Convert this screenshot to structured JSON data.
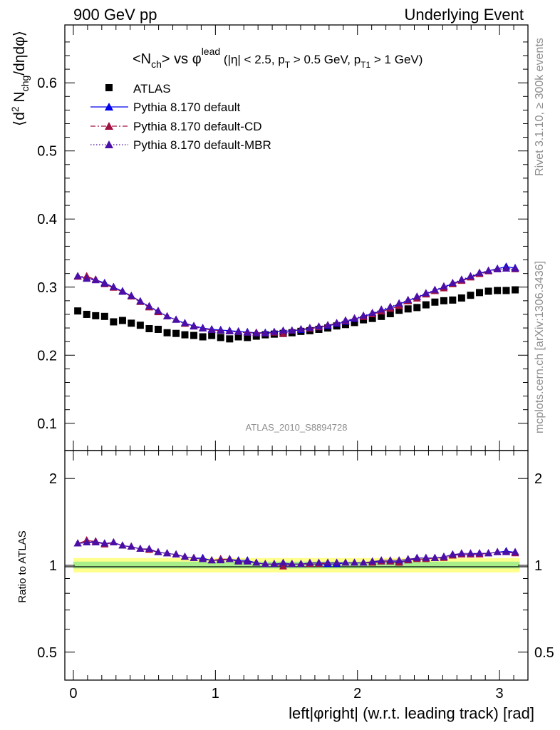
{
  "header": {
    "left": "900 GeV pp",
    "right": "Underlying Event"
  },
  "side": {
    "rivet": "Rivet 3.1.10, ≥ 300k events",
    "source": "mcplots.cern.ch [arXiv:1306.3436]"
  },
  "chart_data": [
    {
      "type": "scatter",
      "title": "<N_ch> vs φ^lead (|η| < 2.5, p_T > 0.5 GeV, p_T1 > 1 GeV)",
      "ylabel": "⟨d² N_chg/dηdφ⟩",
      "xlabel": "",
      "analysis_tag": "ATLAS_2010_S8894728",
      "xlim": [
        -0.06,
        3.2
      ],
      "ylim": [
        0.06,
        0.685
      ],
      "yticks": [
        "0.1",
        "0.2",
        "0.3",
        "0.4",
        "0.5",
        "0.6"
      ],
      "legend_position": "top-left",
      "x": [
        0.031,
        0.094,
        0.157,
        0.22,
        0.283,
        0.346,
        0.408,
        0.471,
        0.534,
        0.597,
        0.66,
        0.723,
        0.785,
        0.848,
        0.911,
        0.974,
        1.037,
        1.1,
        1.162,
        1.225,
        1.288,
        1.351,
        1.414,
        1.477,
        1.539,
        1.602,
        1.665,
        1.728,
        1.791,
        1.854,
        1.916,
        1.979,
        2.042,
        2.105,
        2.168,
        2.231,
        2.293,
        2.356,
        2.419,
        2.482,
        2.545,
        2.608,
        2.67,
        2.733,
        2.796,
        2.859,
        2.922,
        2.985,
        3.047,
        3.11
      ],
      "series": [
        {
          "name": "ATLAS",
          "color": "#000000",
          "marker": "square",
          "values": [
            0.265,
            0.26,
            0.258,
            0.257,
            0.249,
            0.251,
            0.247,
            0.244,
            0.239,
            0.238,
            0.233,
            0.232,
            0.23,
            0.229,
            0.227,
            0.229,
            0.226,
            0.224,
            0.227,
            0.226,
            0.228,
            0.23,
            0.231,
            0.232,
            0.233,
            0.235,
            0.236,
            0.238,
            0.24,
            0.243,
            0.245,
            0.248,
            0.252,
            0.254,
            0.257,
            0.261,
            0.266,
            0.268,
            0.27,
            0.274,
            0.278,
            0.28,
            0.281,
            0.284,
            0.288,
            0.292,
            0.294,
            0.295,
            0.295,
            0.296
          ]
        },
        {
          "name": "Pythia 8.170 default",
          "color": "#0000ee",
          "marker": "triangle",
          "line": "solid",
          "values": [
            0.316,
            0.313,
            0.311,
            0.306,
            0.3,
            0.294,
            0.287,
            0.279,
            0.271,
            0.264,
            0.257,
            0.252,
            0.247,
            0.243,
            0.24,
            0.238,
            0.237,
            0.236,
            0.235,
            0.234,
            0.233,
            0.233,
            0.234,
            0.235,
            0.236,
            0.237,
            0.239,
            0.241,
            0.243,
            0.246,
            0.249,
            0.253,
            0.257,
            0.261,
            0.265,
            0.27,
            0.275,
            0.28,
            0.285,
            0.29,
            0.295,
            0.3,
            0.305,
            0.31,
            0.315,
            0.32,
            0.324,
            0.327,
            0.33,
            0.328
          ]
        },
        {
          "name": "Pythia 8.170 default-CD",
          "color": "#a01040",
          "marker": "triangle",
          "line": "dashdot",
          "values": [
            0.315,
            0.316,
            0.311,
            0.304,
            0.299,
            0.293,
            0.286,
            0.278,
            0.27,
            0.263,
            0.257,
            0.252,
            0.246,
            0.242,
            0.239,
            0.237,
            0.236,
            0.235,
            0.234,
            0.233,
            0.233,
            0.232,
            0.233,
            0.231,
            0.236,
            0.238,
            0.239,
            0.241,
            0.244,
            0.247,
            0.25,
            0.254,
            0.256,
            0.26,
            0.264,
            0.268,
            0.272,
            0.279,
            0.283,
            0.289,
            0.294,
            0.298,
            0.304,
            0.309,
            0.314,
            0.319,
            0.323,
            0.326,
            0.327,
            0.326
          ]
        },
        {
          "name": "Pythia 8.170 default-MBR",
          "color": "#4b0fa8",
          "marker": "triangle",
          "line": "dotted",
          "values": [
            0.316,
            0.312,
            0.31,
            0.305,
            0.3,
            0.293,
            0.287,
            0.279,
            0.272,
            0.265,
            0.257,
            0.252,
            0.247,
            0.242,
            0.239,
            0.237,
            0.236,
            0.235,
            0.234,
            0.233,
            0.232,
            0.232,
            0.234,
            0.236,
            0.236,
            0.238,
            0.24,
            0.242,
            0.244,
            0.247,
            0.251,
            0.254,
            0.258,
            0.262,
            0.267,
            0.271,
            0.276,
            0.281,
            0.286,
            0.291,
            0.296,
            0.301,
            0.306,
            0.311,
            0.316,
            0.321,
            0.324,
            0.326,
            0.327,
            0.327
          ]
        }
      ]
    },
    {
      "type": "scatter",
      "title": "",
      "ylabel": "Ratio to ATLAS",
      "xlabel": "left|φright| (w.r.t. leading track) [rad]",
      "xlim": [
        -0.06,
        3.2
      ],
      "ylim": [
        0.4,
        2.5
      ],
      "log_y": true,
      "yticks": [
        "0.5",
        "1",
        "2"
      ],
      "xticks": [
        "0",
        "1",
        "2",
        "3"
      ],
      "bands": [
        {
          "color": "#ffff8c",
          "lo": 0.945,
          "hi": 1.06
        },
        {
          "color": "#a8ef8c",
          "lo": 0.975,
          "hi": 1.03
        }
      ],
      "series": [
        {
          "name": "Pythia 8.170 default",
          "color": "#0000ee",
          "marker": "triangle",
          "values": [
            1.19,
            1.2,
            1.21,
            1.19,
            1.2,
            1.17,
            1.16,
            1.14,
            1.13,
            1.11,
            1.1,
            1.09,
            1.07,
            1.06,
            1.06,
            1.04,
            1.05,
            1.05,
            1.04,
            1.04,
            1.02,
            1.01,
            1.01,
            1.01,
            1.01,
            1.01,
            1.01,
            1.01,
            1.01,
            1.01,
            1.02,
            1.02,
            1.02,
            1.03,
            1.03,
            1.03,
            1.03,
            1.04,
            1.06,
            1.06,
            1.06,
            1.07,
            1.09,
            1.09,
            1.09,
            1.1,
            1.1,
            1.11,
            1.12,
            1.11
          ]
        },
        {
          "name": "Pythia 8.170 default-CD",
          "color": "#a01040",
          "marker": "triangle",
          "values": [
            1.19,
            1.22,
            1.21,
            1.18,
            1.2,
            1.17,
            1.16,
            1.14,
            1.13,
            1.11,
            1.1,
            1.09,
            1.07,
            1.06,
            1.05,
            1.04,
            1.05,
            1.05,
            1.03,
            1.03,
            1.02,
            1.01,
            1.01,
            0.99,
            1.01,
            1.01,
            1.01,
            1.01,
            1.02,
            1.02,
            1.02,
            1.02,
            1.02,
            1.02,
            1.03,
            1.03,
            1.02,
            1.04,
            1.05,
            1.05,
            1.06,
            1.06,
            1.08,
            1.09,
            1.09,
            1.09,
            1.1,
            1.11,
            1.11,
            1.1
          ]
        },
        {
          "name": "Pythia 8.170 default-MBR",
          "color": "#4b0fa8",
          "marker": "triangle",
          "values": [
            1.19,
            1.2,
            1.2,
            1.19,
            1.2,
            1.17,
            1.16,
            1.14,
            1.14,
            1.11,
            1.1,
            1.09,
            1.07,
            1.06,
            1.05,
            1.04,
            1.04,
            1.05,
            1.03,
            1.03,
            1.02,
            1.01,
            1.01,
            1.02,
            1.01,
            1.01,
            1.02,
            1.02,
            1.02,
            1.02,
            1.02,
            1.02,
            1.02,
            1.03,
            1.04,
            1.04,
            1.04,
            1.05,
            1.06,
            1.06,
            1.06,
            1.07,
            1.09,
            1.1,
            1.1,
            1.1,
            1.1,
            1.11,
            1.11,
            1.11
          ]
        }
      ]
    }
  ]
}
